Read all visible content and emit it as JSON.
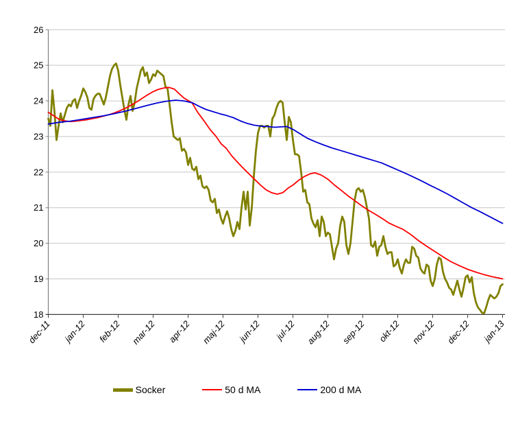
{
  "chart_data": {
    "type": "line",
    "title": "",
    "xlabel": "",
    "ylabel": "",
    "ylim": [
      18,
      26
    ],
    "y_ticks": [
      18,
      19,
      20,
      21,
      22,
      23,
      24,
      25,
      26
    ],
    "x_tick_labels": [
      "dec-11",
      "jan-12",
      "feb-12",
      "mar-12",
      "apr-12",
      "maj-12",
      "jun-12",
      "jul-12",
      "aug-12",
      "sep-12",
      "okt-12",
      "nov-12",
      "dec-12",
      "jan-13"
    ],
    "grid": "horizontal",
    "legend_position": "bottom",
    "colors": {
      "grid": "#c6c6c6",
      "y_axis": "#808080",
      "x_axis": "#3f3f3f",
      "text": "#000000",
      "background": "#ffffff"
    },
    "series": [
      {
        "name": "Socker",
        "color": "#808000",
        "width": 2.8,
        "x_start": 0,
        "x_step": 0.058824,
        "values": [
          23.5,
          23.3,
          24.3,
          23.7,
          22.9,
          23.3,
          23.65,
          23.4,
          23.6,
          23.8,
          23.9,
          23.85,
          24.0,
          24.05,
          23.8,
          24.0,
          24.15,
          24.35,
          24.25,
          24.1,
          23.8,
          23.75,
          24.05,
          24.15,
          24.2,
          24.2,
          24.05,
          23.9,
          24.1,
          24.4,
          24.7,
          24.9,
          25.0,
          25.05,
          24.85,
          24.45,
          24.1,
          23.75,
          23.47,
          23.9,
          24.14,
          23.72,
          23.95,
          24.35,
          24.6,
          24.85,
          24.95,
          24.7,
          24.8,
          24.5,
          24.6,
          24.75,
          24.7,
          24.85,
          24.8,
          24.75,
          24.7,
          24.4,
          24.35,
          23.9,
          23.4,
          23.0,
          22.95,
          22.9,
          22.95,
          22.6,
          22.65,
          22.55,
          22.2,
          22.4,
          22.1,
          22.05,
          22.15,
          21.8,
          21.9,
          21.6,
          21.55,
          21.6,
          21.5,
          21.2,
          21.15,
          21.25,
          20.85,
          20.95,
          20.7,
          20.55,
          20.75,
          20.9,
          20.7,
          20.4,
          20.2,
          20.35,
          20.6,
          20.4,
          21.0,
          21.45,
          20.95,
          21.45,
          20.5,
          21.0,
          21.9,
          22.6,
          23.1,
          23.3,
          23.3,
          23.25,
          23.3,
          23.3,
          23.0,
          23.5,
          23.6,
          23.8,
          23.95,
          24.0,
          23.95,
          23.4,
          22.9,
          23.55,
          23.4,
          22.9,
          22.5,
          22.5,
          22.45,
          22.0,
          21.45,
          21.5,
          21.15,
          21.1,
          20.7,
          20.55,
          20.45,
          20.65,
          20.2,
          20.75,
          20.6,
          20.2,
          20.3,
          20.25,
          19.9,
          19.55,
          19.85,
          20.0,
          20.5,
          20.75,
          20.6,
          19.95,
          19.7,
          20.0,
          20.6,
          21.2,
          21.5,
          21.55,
          21.45,
          21.5,
          21.3,
          21.0,
          20.7,
          19.95,
          19.9,
          20.05,
          19.65,
          19.9,
          19.95,
          20.2,
          19.9,
          19.7,
          19.75,
          19.75,
          19.35,
          19.4,
          19.55,
          19.3,
          19.15,
          19.4,
          19.55,
          19.45,
          19.45,
          19.9,
          19.85,
          19.65,
          19.6,
          19.3,
          19.2,
          19.15,
          19.4,
          19.35,
          18.95,
          18.8,
          19.0,
          19.4,
          19.6,
          19.55,
          19.2,
          19.0,
          18.9,
          18.75,
          18.7,
          18.55,
          18.75,
          18.95,
          18.7,
          18.5,
          18.75,
          19.05,
          19.1,
          18.9,
          19.05,
          18.6,
          18.35,
          18.2,
          18.13,
          18.05,
          18.03,
          18.2,
          18.4,
          18.55,
          18.5,
          18.45,
          18.5,
          18.6,
          18.8,
          18.85
        ]
      },
      {
        "name": "50 d MA",
        "color": "#ff0000",
        "width": 1.8,
        "points": [
          [
            0,
            23.68
          ],
          [
            0.157,
            23.58
          ],
          [
            0.314,
            23.48
          ],
          [
            0.471,
            23.44
          ],
          [
            0.627,
            23.42
          ],
          [
            0.784,
            23.43
          ],
          [
            0.941,
            23.45
          ],
          [
            1.098,
            23.47
          ],
          [
            1.255,
            23.5
          ],
          [
            1.412,
            23.53
          ],
          [
            1.569,
            23.57
          ],
          [
            1.725,
            23.61
          ],
          [
            1.882,
            23.66
          ],
          [
            2.039,
            23.72
          ],
          [
            2.196,
            23.79
          ],
          [
            2.353,
            23.87
          ],
          [
            2.51,
            23.96
          ],
          [
            2.667,
            24.06
          ],
          [
            2.824,
            24.16
          ],
          [
            2.98,
            24.25
          ],
          [
            3.137,
            24.32
          ],
          [
            3.294,
            24.36
          ],
          [
            3.451,
            24.38
          ],
          [
            3.608,
            24.33
          ],
          [
            3.725,
            24.22
          ],
          [
            3.882,
            24.08
          ],
          [
            4.118,
            23.94
          ],
          [
            4.275,
            23.68
          ],
          [
            4.471,
            23.42
          ],
          [
            4.627,
            23.2
          ],
          [
            4.804,
            23.0
          ],
          [
            4.941,
            22.8
          ],
          [
            5.098,
            22.66
          ],
          [
            5.255,
            22.45
          ],
          [
            5.451,
            22.24
          ],
          [
            5.608,
            22.08
          ],
          [
            5.765,
            21.93
          ],
          [
            5.922,
            21.78
          ],
          [
            6.078,
            21.63
          ],
          [
            6.235,
            21.5
          ],
          [
            6.392,
            21.42
          ],
          [
            6.549,
            21.38
          ],
          [
            6.706,
            21.42
          ],
          [
            6.863,
            21.55
          ],
          [
            7.02,
            21.65
          ],
          [
            7.176,
            21.78
          ],
          [
            7.333,
            21.88
          ],
          [
            7.49,
            21.95
          ],
          [
            7.627,
            21.98
          ],
          [
            7.804,
            21.92
          ],
          [
            8.0,
            21.8
          ],
          [
            8.196,
            21.63
          ],
          [
            8.392,
            21.48
          ],
          [
            8.569,
            21.34
          ],
          [
            8.765,
            21.2
          ],
          [
            8.961,
            21.06
          ],
          [
            9.157,
            20.93
          ],
          [
            9.353,
            20.82
          ],
          [
            9.549,
            20.7
          ],
          [
            9.745,
            20.57
          ],
          [
            9.941,
            20.48
          ],
          [
            10.137,
            20.4
          ],
          [
            10.353,
            20.26
          ],
          [
            10.588,
            20.08
          ],
          [
            10.824,
            19.92
          ],
          [
            11.059,
            19.77
          ],
          [
            11.294,
            19.62
          ],
          [
            11.529,
            19.48
          ],
          [
            11.765,
            19.37
          ],
          [
            12.0,
            19.27
          ],
          [
            12.235,
            19.19
          ],
          [
            12.471,
            19.12
          ],
          [
            12.706,
            19.06
          ],
          [
            12.863,
            19.03
          ],
          [
            13.0,
            19.0
          ]
        ]
      },
      {
        "name": "200 d MA",
        "color": "#0000d4",
        "width": 1.8,
        "points": [
          [
            0,
            23.35
          ],
          [
            0.314,
            23.4
          ],
          [
            0.627,
            23.43
          ],
          [
            0.941,
            23.48
          ],
          [
            1.255,
            23.53
          ],
          [
            1.569,
            23.58
          ],
          [
            1.882,
            23.64
          ],
          [
            2.196,
            23.71
          ],
          [
            2.51,
            23.79
          ],
          [
            2.824,
            23.87
          ],
          [
            3.098,
            23.94
          ],
          [
            3.373,
            23.99
          ],
          [
            3.647,
            24.02
          ],
          [
            3.882,
            24.0
          ],
          [
            4.118,
            23.95
          ],
          [
            4.314,
            23.85
          ],
          [
            4.51,
            23.76
          ],
          [
            4.706,
            23.7
          ],
          [
            4.902,
            23.64
          ],
          [
            5.098,
            23.59
          ],
          [
            5.294,
            23.53
          ],
          [
            5.49,
            23.44
          ],
          [
            5.686,
            23.37
          ],
          [
            5.882,
            23.32
          ],
          [
            6.078,
            23.29
          ],
          [
            6.275,
            23.28
          ],
          [
            6.471,
            23.26
          ],
          [
            6.667,
            23.27
          ],
          [
            6.824,
            23.28
          ],
          [
            7.02,
            23.19
          ],
          [
            7.216,
            23.07
          ],
          [
            7.412,
            22.95
          ],
          [
            7.647,
            22.85
          ],
          [
            7.882,
            22.76
          ],
          [
            8.118,
            22.68
          ],
          [
            8.353,
            22.61
          ],
          [
            8.588,
            22.54
          ],
          [
            8.824,
            22.47
          ],
          [
            9.059,
            22.4
          ],
          [
            9.294,
            22.33
          ],
          [
            9.529,
            22.26
          ],
          [
            9.765,
            22.16
          ],
          [
            10.0,
            22.06
          ],
          [
            10.235,
            21.96
          ],
          [
            10.471,
            21.85
          ],
          [
            10.706,
            21.74
          ],
          [
            10.941,
            21.62
          ],
          [
            11.176,
            21.51
          ],
          [
            11.412,
            21.39
          ],
          [
            11.647,
            21.26
          ],
          [
            11.882,
            21.13
          ],
          [
            12.118,
            21.0
          ],
          [
            12.353,
            20.89
          ],
          [
            12.588,
            20.77
          ],
          [
            12.804,
            20.66
          ],
          [
            13.0,
            20.56
          ]
        ]
      }
    ]
  }
}
